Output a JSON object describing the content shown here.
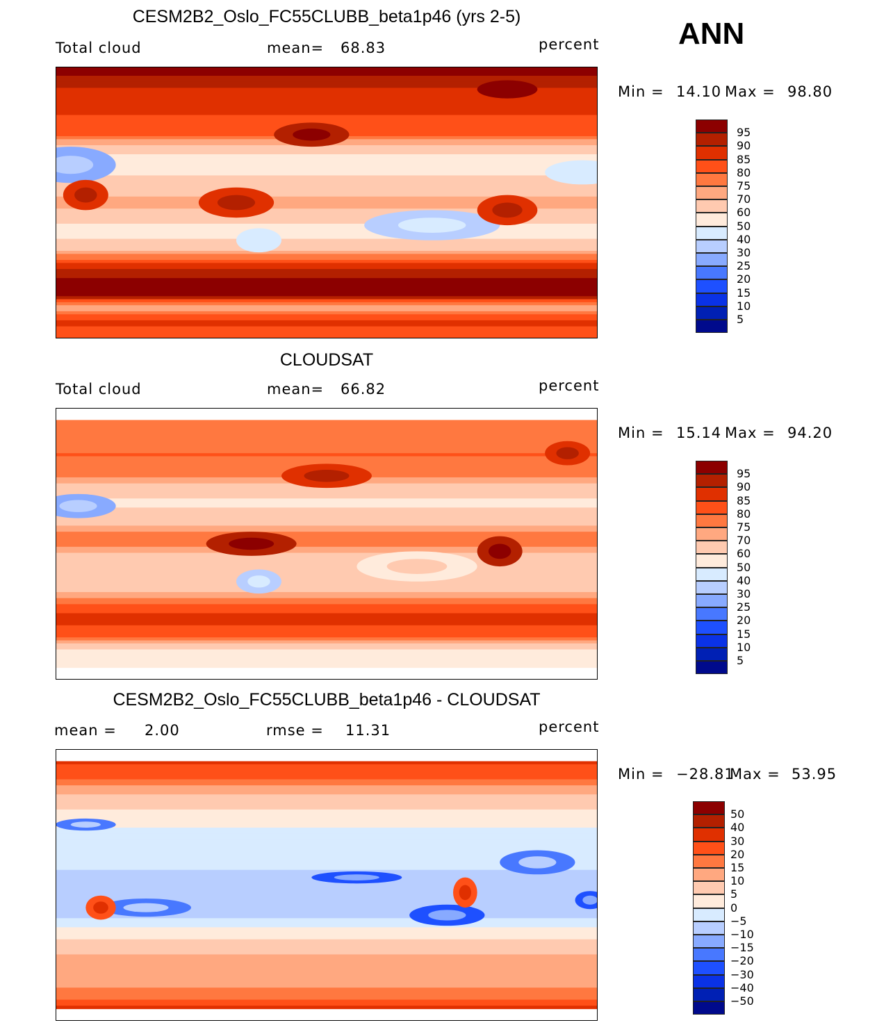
{
  "season": "ANN",
  "colors": [
    "#000a8c",
    "#0020b4",
    "#0a32e6",
    "#1e50ff",
    "#4878ff",
    "#88aaff",
    "#b8ceff",
    "#d8ebff",
    "#ffebdc",
    "#ffcab0",
    "#ffa880",
    "#ff7840",
    "#ff5018",
    "#e03000",
    "#b32000",
    "#8c0000"
  ],
  "chart_data": [
    {
      "type": "heatmap",
      "title": "CESM2B2_Oslo_FC55CLUBB_beta1p46 (yrs 2-5)",
      "left_label": "Total cloud",
      "mean_label": "mean=",
      "mean": "68.83",
      "units": "percent",
      "min_label": "Min =",
      "min": "14.10",
      "max_label": "Max =",
      "max": "98.80",
      "levels": [
        5,
        10,
        15,
        20,
        25,
        30,
        40,
        50,
        60,
        70,
        75,
        80,
        85,
        90,
        95
      ],
      "level_labels": [
        "95",
        "90",
        "85",
        "80",
        "75",
        "70",
        "60",
        "50",
        "40",
        "30",
        "25",
        "20",
        "15",
        "10",
        "5"
      ],
      "lat_extent": [
        -90,
        90
      ],
      "zonal_profile": [
        [
          90,
          98
        ],
        [
          75,
          88
        ],
        [
          60,
          85
        ],
        [
          45,
          80
        ],
        [
          35,
          62
        ],
        [
          25,
          50
        ],
        [
          15,
          65
        ],
        [
          0,
          72
        ],
        [
          -10,
          62
        ],
        [
          -20,
          55
        ],
        [
          -30,
          68
        ],
        [
          -40,
          86
        ],
        [
          -50,
          96
        ],
        [
          -60,
          96
        ],
        [
          -68,
          72
        ],
        [
          -78,
          86
        ],
        [
          -90,
          80
        ]
      ],
      "features": [
        [
          10,
          25,
          30,
          12,
          26
        ],
        [
          350,
          20,
          25,
          8,
          40
        ],
        [
          250,
          -15,
          45,
          10,
          35
        ],
        [
          300,
          -5,
          20,
          10,
          85
        ],
        [
          20,
          5,
          15,
          10,
          86
        ],
        [
          120,
          0,
          25,
          10,
          87
        ],
        [
          135,
          -25,
          15,
          8,
          42
        ],
        [
          300,
          75,
          20,
          6,
          95
        ],
        [
          170,
          45,
          25,
          8,
          92
        ]
      ]
    },
    {
      "type": "heatmap",
      "title": "CLOUDSAT",
      "left_label": "Total cloud",
      "mean_label": "mean=",
      "mean": "66.82",
      "units": "percent",
      "min_label": "Min =",
      "min": "15.14",
      "max_label": "Max =",
      "max": "94.20",
      "levels": [
        5,
        10,
        15,
        20,
        25,
        30,
        40,
        50,
        60,
        70,
        75,
        80,
        85,
        90,
        95
      ],
      "level_labels": [
        "95",
        "90",
        "85",
        "80",
        "75",
        "70",
        "60",
        "50",
        "40",
        "30",
        "25",
        "20",
        "15",
        "10",
        "5"
      ],
      "lat_extent": [
        -82,
        82
      ],
      "zonal_profile": [
        [
          82,
          75
        ],
        [
          60,
          80
        ],
        [
          45,
          75
        ],
        [
          30,
          58
        ],
        [
          20,
          62
        ],
        [
          5,
          80
        ],
        [
          -10,
          66
        ],
        [
          -25,
          62
        ],
        [
          -40,
          82
        ],
        [
          -50,
          88
        ],
        [
          -60,
          80
        ],
        [
          -70,
          58
        ],
        [
          -82,
          52
        ]
      ],
      "features": [
        [
          15,
          25,
          25,
          8,
          25
        ],
        [
          135,
          -25,
          15,
          8,
          35
        ],
        [
          130,
          0,
          30,
          8,
          90
        ],
        [
          295,
          -5,
          15,
          10,
          90
        ],
        [
          180,
          45,
          30,
          8,
          86
        ],
        [
          240,
          -15,
          40,
          10,
          55
        ],
        [
          340,
          60,
          15,
          8,
          86
        ]
      ]
    },
    {
      "type": "heatmap",
      "title": "CESM2B2_Oslo_FC55CLUBB_beta1p46 - CLOUDSAT",
      "left_label": "mean =",
      "mean_label": "rmse =",
      "mean": "2.00",
      "rmse": "11.31",
      "units": "percent",
      "min_label": "Min =",
      "min": "−28.81",
      "max_label": "Max =",
      "max": "53.95",
      "levels": [
        -50,
        -40,
        -30,
        -20,
        -15,
        -10,
        -5,
        0,
        5,
        10,
        15,
        20,
        30,
        40,
        50
      ],
      "level_labels": [
        "50",
        "40",
        "30",
        "20",
        "15",
        "10",
        "5",
        "0",
        "−5",
        "−10",
        "−15",
        "−20",
        "−30",
        "−40",
        "−50"
      ],
      "lat_extent": [
        -82,
        82
      ],
      "zonal_profile": [
        [
          82,
          32
        ],
        [
          65,
          12
        ],
        [
          45,
          2
        ],
        [
          30,
          -4
        ],
        [
          15,
          -4
        ],
        [
          0,
          -8
        ],
        [
          -15,
          -9
        ],
        [
          -30,
          2
        ],
        [
          -45,
          10
        ],
        [
          -60,
          12
        ],
        [
          -75,
          18
        ],
        [
          -82,
          40
        ]
      ],
      "features": [
        [
          260,
          -20,
          25,
          7,
          -25
        ],
        [
          320,
          15,
          25,
          8,
          -20
        ],
        [
          60,
          -15,
          30,
          6,
          -20
        ],
        [
          20,
          40,
          20,
          4,
          -20
        ],
        [
          30,
          -15,
          10,
          8,
          22
        ],
        [
          272,
          -5,
          8,
          10,
          22
        ],
        [
          200,
          5,
          30,
          4,
          -25
        ],
        [
          355,
          -10,
          10,
          6,
          -25
        ]
      ]
    }
  ]
}
